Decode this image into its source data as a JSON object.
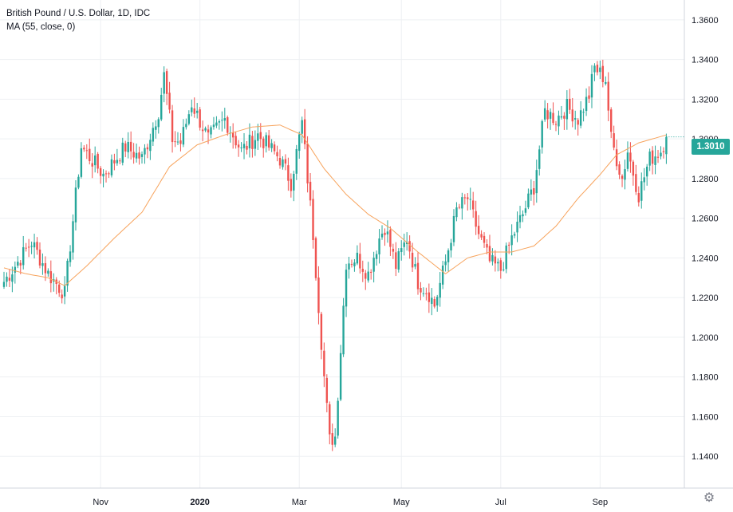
{
  "legend": {
    "title": "British Pound / U.S. Dollar, 1D, IDC",
    "indicator": "MA (55, close, 0)"
  },
  "last_price": "1.3010",
  "icons": {
    "settings": "gear-icon"
  },
  "colors": {
    "up": "#26a69a",
    "down": "#ef5350",
    "ma": "#f7a35c",
    "grid": "#eef0f3",
    "axis_text": "#131722"
  },
  "chart_data": {
    "type": "candlestick",
    "title": "British Pound / U.S. Dollar, 1D, IDC",
    "xlabel": "",
    "ylabel": "",
    "ylim": [
      1.124,
      1.37
    ],
    "y_ticks": [
      "1.1400",
      "1.1600",
      "1.1800",
      "1.2000",
      "1.2200",
      "1.2400",
      "1.2600",
      "1.2800",
      "1.3000",
      "1.3200",
      "1.3400",
      "1.3600"
    ],
    "x_ticks": [
      "Nov",
      "2020",
      "Mar",
      "May",
      "Jul",
      "Sep"
    ],
    "grid": true,
    "key_closes": [
      {
        "x": 0,
        "y": 1.228
      },
      {
        "x": 4,
        "y": 1.236
      },
      {
        "x": 10,
        "y": 1.248
      },
      {
        "x": 16,
        "y": 1.232
      },
      {
        "x": 22,
        "y": 1.222
      },
      {
        "x": 28,
        "y": 1.296
      },
      {
        "x": 36,
        "y": 1.282
      },
      {
        "x": 44,
        "y": 1.296
      },
      {
        "x": 50,
        "y": 1.29
      },
      {
        "x": 56,
        "y": 1.314
      },
      {
        "x": 58,
        "y": 1.332
      },
      {
        "x": 61,
        "y": 1.3
      },
      {
        "x": 64,
        "y": 1.298
      },
      {
        "x": 68,
        "y": 1.318
      },
      {
        "x": 74,
        "y": 1.3
      },
      {
        "x": 80,
        "y": 1.31
      },
      {
        "x": 86,
        "y": 1.294
      },
      {
        "x": 92,
        "y": 1.302
      },
      {
        "x": 100,
        "y": 1.29
      },
      {
        "x": 104,
        "y": 1.278
      },
      {
        "x": 108,
        "y": 1.308
      },
      {
        "x": 112,
        "y": 1.252
      },
      {
        "x": 116,
        "y": 1.18
      },
      {
        "x": 118,
        "y": 1.148
      },
      {
        "x": 120,
        "y": 1.15
      },
      {
        "x": 124,
        "y": 1.238
      },
      {
        "x": 128,
        "y": 1.24
      },
      {
        "x": 132,
        "y": 1.232
      },
      {
        "x": 136,
        "y": 1.25
      },
      {
        "x": 138,
        "y": 1.256
      },
      {
        "x": 142,
        "y": 1.236
      },
      {
        "x": 146,
        "y": 1.25
      },
      {
        "x": 150,
        "y": 1.228
      },
      {
        "x": 154,
        "y": 1.222
      },
      {
        "x": 156,
        "y": 1.216
      },
      {
        "x": 160,
        "y": 1.238
      },
      {
        "x": 164,
        "y": 1.264
      },
      {
        "x": 168,
        "y": 1.27
      },
      {
        "x": 172,
        "y": 1.252
      },
      {
        "x": 176,
        "y": 1.238
      },
      {
        "x": 180,
        "y": 1.234
      },
      {
        "x": 184,
        "y": 1.25
      },
      {
        "x": 188,
        "y": 1.262
      },
      {
        "x": 192,
        "y": 1.276
      },
      {
        "x": 196,
        "y": 1.314
      },
      {
        "x": 200,
        "y": 1.31
      },
      {
        "x": 204,
        "y": 1.316
      },
      {
        "x": 208,
        "y": 1.31
      },
      {
        "x": 212,
        "y": 1.322
      },
      {
        "x": 214,
        "y": 1.336
      },
      {
        "x": 218,
        "y": 1.33
      },
      {
        "x": 220,
        "y": 1.3
      },
      {
        "x": 224,
        "y": 1.28
      },
      {
        "x": 226,
        "y": 1.294
      },
      {
        "x": 230,
        "y": 1.272
      },
      {
        "x": 234,
        "y": 1.29
      },
      {
        "x": 238,
        "y": 1.294
      },
      {
        "x": 240,
        "y": 1.301
      }
    ],
    "moving_average": {
      "period": 55,
      "points": [
        {
          "x": 0,
          "y": 1.235
        },
        {
          "x": 8,
          "y": 1.232
        },
        {
          "x": 16,
          "y": 1.23
        },
        {
          "x": 22,
          "y": 1.226
        },
        {
          "x": 30,
          "y": 1.236
        },
        {
          "x": 40,
          "y": 1.25
        },
        {
          "x": 50,
          "y": 1.263
        },
        {
          "x": 60,
          "y": 1.286
        },
        {
          "x": 70,
          "y": 1.297
        },
        {
          "x": 80,
          "y": 1.302
        },
        {
          "x": 90,
          "y": 1.306
        },
        {
          "x": 100,
          "y": 1.307
        },
        {
          "x": 108,
          "y": 1.302
        },
        {
          "x": 116,
          "y": 1.285
        },
        {
          "x": 124,
          "y": 1.272
        },
        {
          "x": 132,
          "y": 1.262
        },
        {
          "x": 140,
          "y": 1.255
        },
        {
          "x": 150,
          "y": 1.243
        },
        {
          "x": 160,
          "y": 1.232
        },
        {
          "x": 168,
          "y": 1.24
        },
        {
          "x": 176,
          "y": 1.243
        },
        {
          "x": 184,
          "y": 1.243
        },
        {
          "x": 192,
          "y": 1.246
        },
        {
          "x": 200,
          "y": 1.256
        },
        {
          "x": 208,
          "y": 1.27
        },
        {
          "x": 216,
          "y": 1.282
        },
        {
          "x": 222,
          "y": 1.292
        },
        {
          "x": 230,
          "y": 1.298
        },
        {
          "x": 240,
          "y": 1.302
        }
      ]
    },
    "last_close": 1.301
  }
}
